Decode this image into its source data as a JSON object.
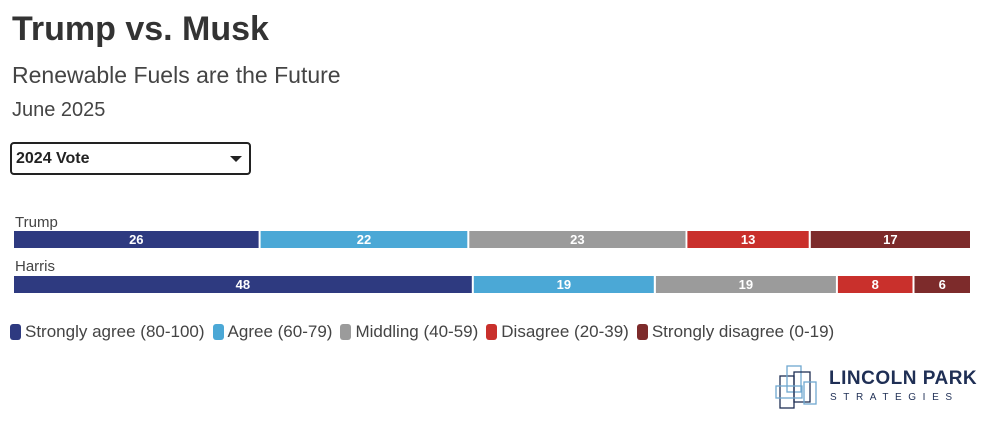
{
  "header": {
    "title": "Trump vs. Musk",
    "subtitle": "Renewable Fuels are the Future",
    "date": "June 2025"
  },
  "filter": {
    "selected": "2024 Vote"
  },
  "chart_data": {
    "type": "bar",
    "orientation": "horizontal",
    "stacked": true,
    "categories": [
      "Trump",
      "Harris"
    ],
    "series": [
      {
        "name": "Strongly agree (80-100)",
        "color": "#2e3a80",
        "values": [
          26,
          48
        ]
      },
      {
        "name": "Agree (60-79)",
        "color": "#4ba8d6",
        "values": [
          22,
          19
        ]
      },
      {
        "name": "Middling (40-59)",
        "color": "#9b9b9b",
        "values": [
          23,
          19
        ]
      },
      {
        "name": "Disagree (20-39)",
        "color": "#c9302c",
        "values": [
          13,
          8
        ]
      },
      {
        "name": "Strongly disagree (0-19)",
        "color": "#7d2b2b",
        "values": [
          17,
          6
        ]
      }
    ],
    "legend_position": "bottom"
  },
  "logo": {
    "line1": "LINCOLN PARK",
    "line2": "STRATEGIES"
  }
}
